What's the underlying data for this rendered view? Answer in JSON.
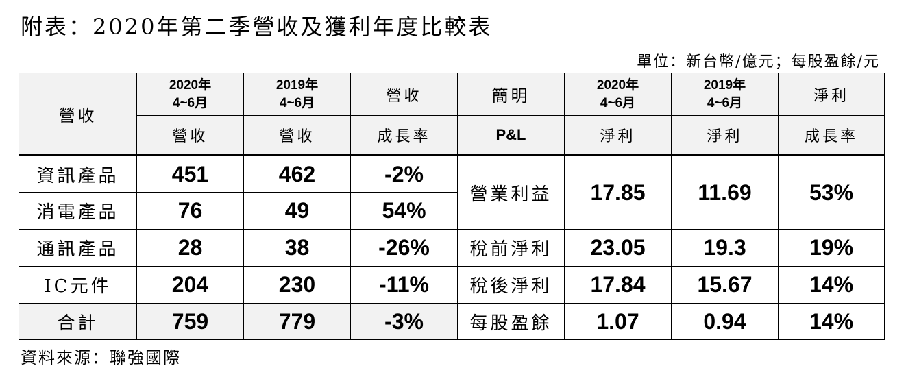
{
  "title": "附表：2020年第二季營收及獲利年度比較表",
  "unit": "單位：新台幣/億元；每股盈餘/元",
  "source": "資料來源：聯強國際",
  "header": {
    "rev_label": "營收",
    "col2020_line1": "2020年",
    "col2020_line2": "4~6月",
    "col2019_line1": "2019年",
    "col2019_line2": "4~6月",
    "rev_growth_top": "營收",
    "brief": "簡明",
    "net2020_line1": "2020年",
    "net2020_line2": "4~6月",
    "net2019_line1": "2019年",
    "net2019_line2": "4~6月",
    "net_growth_top": "淨利",
    "sub_rev1": "營收",
    "sub_rev2": "營收",
    "sub_growth": "成長率",
    "sub_pl": "P&L",
    "sub_net1": "淨利",
    "sub_net2": "淨利",
    "sub_growth2": "成長率"
  },
  "revenue_rows": [
    {
      "label": "資訊產品",
      "y2020": "451",
      "y2019": "462",
      "growth": "-2%"
    },
    {
      "label": "消電產品",
      "y2020": "76",
      "y2019": "49",
      "growth": "54%"
    },
    {
      "label": "通訊產品",
      "y2020": "28",
      "y2019": "38",
      "growth": "-26%"
    },
    {
      "label": "IC元件",
      "y2020": "204",
      "y2019": "230",
      "growth": "-11%"
    },
    {
      "label": "合計",
      "y2020": "759",
      "y2019": "779",
      "growth": "-3%"
    }
  ],
  "pl_rows": [
    {
      "label": "營業利益",
      "y2020": "17.85",
      "y2019": "11.69",
      "growth": "53%"
    },
    {
      "label": "稅前淨利",
      "y2020": "23.05",
      "y2019": "19.3",
      "growth": "19%"
    },
    {
      "label": "稅後淨利",
      "y2020": "17.84",
      "y2019": "15.67",
      "growth": "14%"
    },
    {
      "label": "每股盈餘",
      "y2020": "1.07",
      "y2019": "0.94",
      "growth": "14%"
    }
  ]
}
